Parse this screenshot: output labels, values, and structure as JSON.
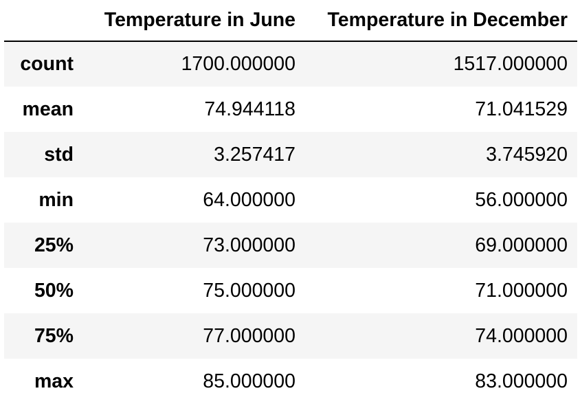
{
  "table": {
    "columns": [
      "",
      "Temperature in June",
      "Temperature in December"
    ],
    "rows": [
      {
        "index": "count",
        "june": "1700.000000",
        "december": "1517.000000"
      },
      {
        "index": "mean",
        "june": "74.944118",
        "december": "71.041529"
      },
      {
        "index": "std",
        "june": "3.257417",
        "december": "3.745920"
      },
      {
        "index": "min",
        "june": "64.000000",
        "december": "56.000000"
      },
      {
        "index": "25%",
        "june": "73.000000",
        "december": "69.000000"
      },
      {
        "index": "50%",
        "june": "75.000000",
        "december": "71.000000"
      },
      {
        "index": "75%",
        "june": "77.000000",
        "december": "74.000000"
      },
      {
        "index": "max",
        "june": "85.000000",
        "december": "83.000000"
      }
    ]
  },
  "colors": {
    "stripe": "#f5f5f5",
    "background": "#ffffff",
    "text": "#000000",
    "header_rule": "#000000"
  }
}
